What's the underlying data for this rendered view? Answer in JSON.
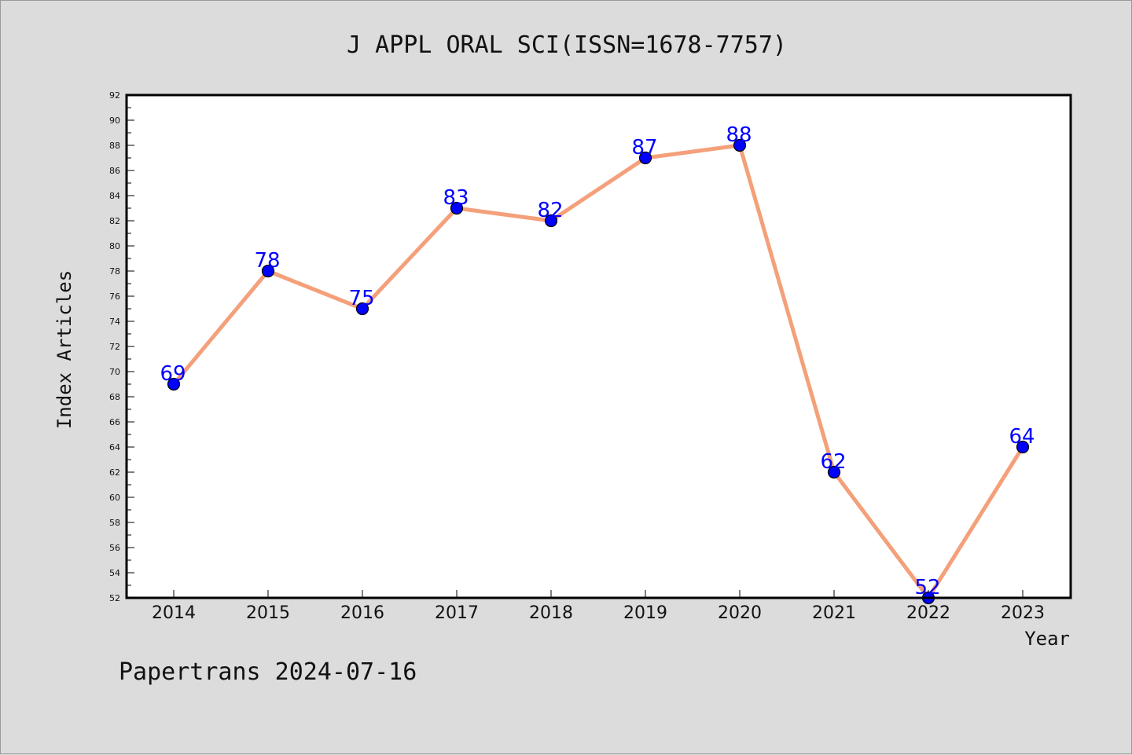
{
  "chart_data": {
    "type": "line",
    "title": "J APPL ORAL SCI(ISSN=1678-7757)",
    "xlabel": "Year",
    "ylabel": "Index Articles",
    "categories": [
      "2014",
      "2015",
      "2016",
      "2017",
      "2018",
      "2019",
      "2020",
      "2021",
      "2022",
      "2023"
    ],
    "values": [
      69,
      78,
      75,
      83,
      82,
      87,
      88,
      62,
      52,
      64
    ],
    "ylim": [
      52,
      92
    ],
    "ytick_step": 2,
    "grid": false,
    "line_color": "#f4a07a",
    "marker_color": "#0000ff",
    "label_color": "#0000ff",
    "background_color": "#dcdcdc",
    "plot_background": "#ffffff"
  },
  "footer": {
    "text": "Papertrans 2024-07-16"
  }
}
